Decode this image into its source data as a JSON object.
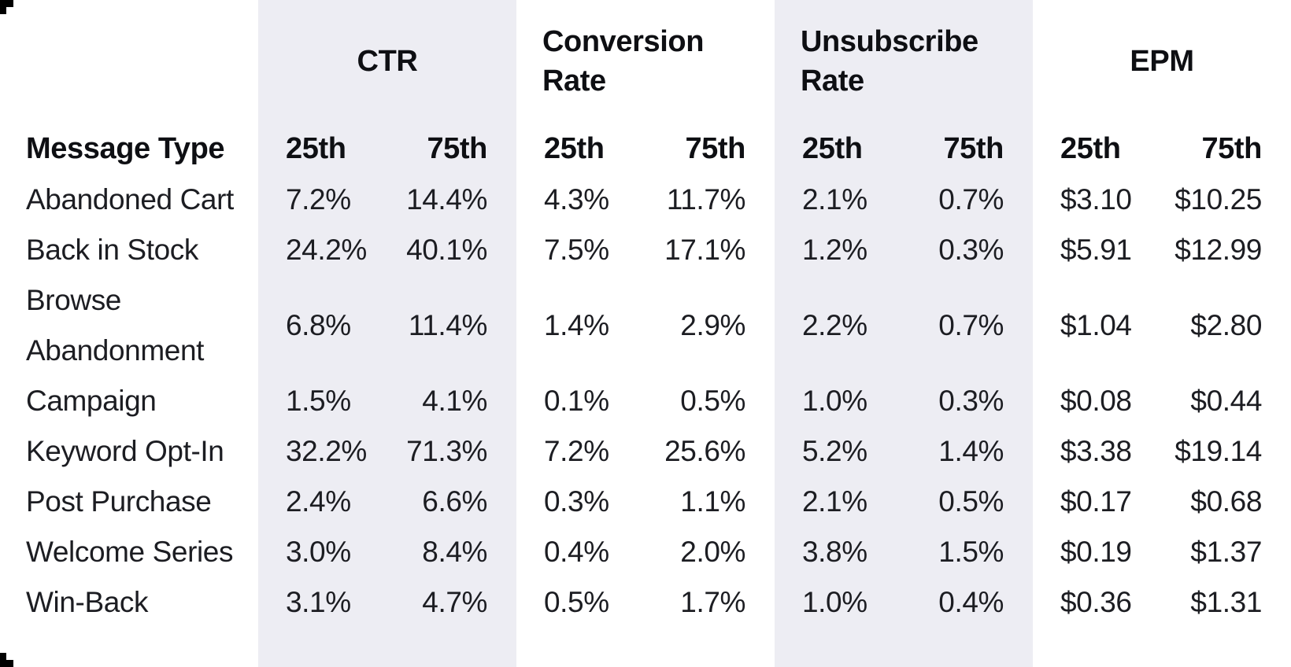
{
  "chart_data": {
    "type": "table",
    "row_header": "Message Type",
    "column_groups": [
      {
        "label": "CTR",
        "align": "center"
      },
      {
        "label": "Conversion Rate",
        "align": "left"
      },
      {
        "label": "Unsubscribe Rate",
        "align": "left"
      },
      {
        "label": "EPM",
        "align": "center"
      }
    ],
    "sub_columns": [
      "25th",
      "75th"
    ],
    "rows": [
      {
        "label": "Abandoned Cart",
        "values": [
          "7.2%",
          "14.4%",
          "4.3%",
          "11.7%",
          "2.1%",
          "0.7%",
          "$3.10",
          "$10.25"
        ]
      },
      {
        "label": "Back in Stock",
        "values": [
          "24.2%",
          "40.1%",
          "7.5%",
          "17.1%",
          "1.2%",
          "0.3%",
          "$5.91",
          "$12.99"
        ]
      },
      {
        "label": "Browse Abandonment",
        "values": [
          "6.8%",
          "11.4%",
          "1.4%",
          "2.9%",
          "2.2%",
          "0.7%",
          "$1.04",
          "$2.80"
        ]
      },
      {
        "label": "Campaign",
        "values": [
          "1.5%",
          "4.1%",
          "0.1%",
          "0.5%",
          "1.0%",
          "0.3%",
          "$0.08",
          "$0.44"
        ]
      },
      {
        "label": "Keyword Opt-In",
        "values": [
          "32.2%",
          "71.3%",
          "7.2%",
          "25.6%",
          "5.2%",
          "1.4%",
          "$3.38",
          "$19.14"
        ]
      },
      {
        "label": "Post Purchase",
        "values": [
          "2.4%",
          "6.6%",
          "0.3%",
          "1.1%",
          "2.1%",
          "0.5%",
          "$0.17",
          "$0.68"
        ]
      },
      {
        "label": "Welcome Series",
        "values": [
          "3.0%",
          "8.4%",
          "0.4%",
          "2.0%",
          "3.8%",
          "1.5%",
          "$0.19",
          "$1.37"
        ]
      },
      {
        "label": "Win-Back",
        "values": [
          "3.1%",
          "4.7%",
          "0.5%",
          "1.7%",
          "1.0%",
          "0.4%",
          "$0.36",
          "$1.31"
        ]
      }
    ],
    "layout": {
      "banded_groups": [
        "CTR",
        "Unsubscribe Rate"
      ],
      "band_color": "#ededf3"
    }
  },
  "colors": {
    "background": "#ffffff",
    "band": "#ededf3",
    "heading_text": "#0e0f13",
    "body_text": "#1c1d22",
    "crop_mark": "#000000"
  }
}
